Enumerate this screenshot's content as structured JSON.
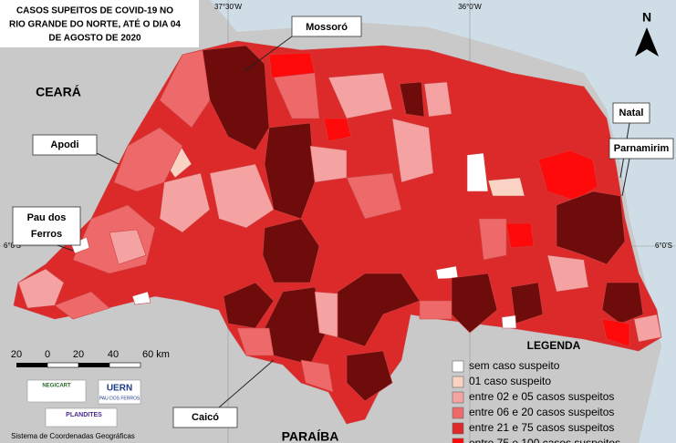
{
  "title": [
    "CASOS SUPEITOS DE COVID-19 NO",
    "RIO GRANDE DO NORTE, ATÉ O DIA 04",
    "DE AGOSTO DE 2020"
  ],
  "north": "N",
  "coordinates": [
    "37°30'W",
    "36°0'W",
    "6°0'S"
  ],
  "neighbors": [
    "CEARÁ",
    "PARAÍBA"
  ],
  "callouts": [
    "Mossoró",
    "Apodi",
    "Pau dos",
    "Ferros",
    "Natal",
    "Parnamirim",
    "Caicó"
  ],
  "scale": [
    "20",
    "0",
    "20",
    "40",
    "60 km"
  ],
  "logos": [
    "NEGICART",
    "UERN",
    "PAU DOS FERROS",
    "PLANDITES"
  ],
  "footer": "Sistema de Coordenadas Geográficas",
  "legend": {
    "title": "LEGENDA",
    "items": [
      {
        "label": "sem caso suspeito",
        "color": "#ffffff"
      },
      {
        "label": "01 caso suspeito",
        "color": "#fbd3c4"
      },
      {
        "label": "entre 02 e 05 casos suspeitos",
        "color": "#f4a2a2"
      },
      {
        "label": "entre 06 e 20 casos suspeitos",
        "color": "#ee6a6a"
      },
      {
        "label": "entre 21 e 75 casos suspeitos",
        "color": "#dc2a2a"
      },
      {
        "label": "entre 75 e 100 casos suspeitos",
        "color": "#ff0a0a"
      }
    ]
  }
}
